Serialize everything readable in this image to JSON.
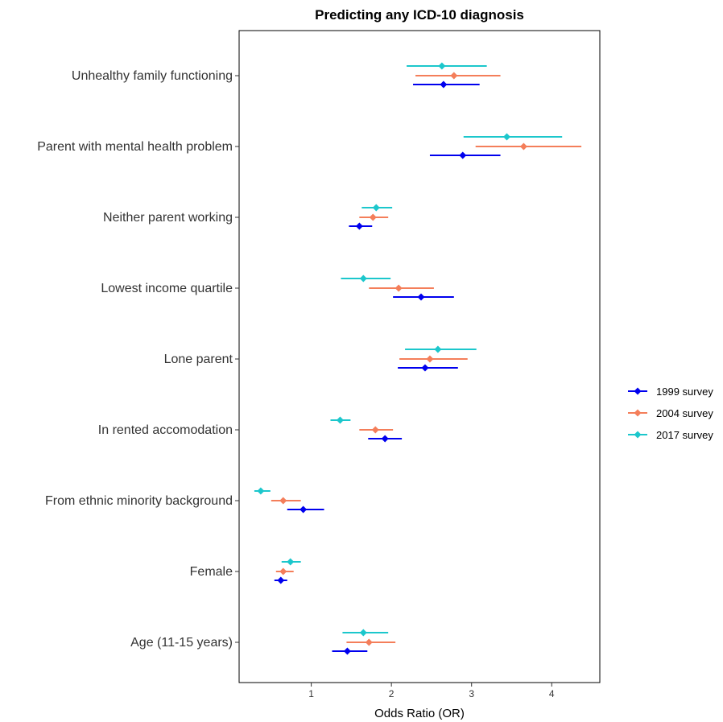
{
  "chart_data": {
    "type": "forest",
    "title": "Predicting any ICD-10 diagnosis",
    "xlabel": "Odds Ratio (OR)",
    "ylabel": "",
    "xlim": [
      0.1,
      4.6
    ],
    "xticks": [
      1,
      2,
      3,
      4
    ],
    "grid": false,
    "legend_position": "right",
    "categories": [
      "Unhealthy family functioning",
      "Parent with mental health problem",
      "Neither parent working",
      "Lowest income quartile",
      "Lone parent",
      "In rented accomodation",
      "From ethnic minority background",
      "Female",
      "Age (11-15 years)"
    ],
    "series": [
      {
        "name": "1999 survey",
        "color": "#0000EE",
        "points": [
          {
            "or": 2.65,
            "lo": 2.27,
            "hi": 3.1
          },
          {
            "or": 2.89,
            "lo": 2.48,
            "hi": 3.36
          },
          {
            "or": 1.6,
            "lo": 1.47,
            "hi": 1.76
          },
          {
            "or": 2.37,
            "lo": 2.02,
            "hi": 2.78
          },
          {
            "or": 2.42,
            "lo": 2.08,
            "hi": 2.83
          },
          {
            "or": 1.92,
            "lo": 1.71,
            "hi": 2.13
          },
          {
            "or": 0.9,
            "lo": 0.7,
            "hi": 1.16
          },
          {
            "or": 0.62,
            "lo": 0.54,
            "hi": 0.7
          },
          {
            "or": 1.45,
            "lo": 1.26,
            "hi": 1.7
          }
        ]
      },
      {
        "name": "2004 survey",
        "color": "#F47E5A",
        "points": [
          {
            "or": 2.78,
            "lo": 2.3,
            "hi": 3.36
          },
          {
            "or": 3.65,
            "lo": 3.05,
            "hi": 4.37
          },
          {
            "or": 1.77,
            "lo": 1.6,
            "hi": 1.96
          },
          {
            "or": 2.09,
            "lo": 1.72,
            "hi": 2.53
          },
          {
            "or": 2.48,
            "lo": 2.1,
            "hi": 2.95
          },
          {
            "or": 1.8,
            "lo": 1.6,
            "hi": 2.02
          },
          {
            "or": 0.65,
            "lo": 0.5,
            "hi": 0.87
          },
          {
            "or": 0.65,
            "lo": 0.56,
            "hi": 0.78
          },
          {
            "or": 1.72,
            "lo": 1.44,
            "hi": 2.05
          }
        ]
      },
      {
        "name": "2017 survey",
        "color": "#1CC7CC",
        "points": [
          {
            "or": 2.63,
            "lo": 2.19,
            "hi": 3.19
          },
          {
            "or": 3.44,
            "lo": 2.9,
            "hi": 4.13
          },
          {
            "or": 1.81,
            "lo": 1.63,
            "hi": 2.01
          },
          {
            "or": 1.65,
            "lo": 1.37,
            "hi": 1.99
          },
          {
            "or": 2.58,
            "lo": 2.17,
            "hi": 3.06
          },
          {
            "or": 1.36,
            "lo": 1.24,
            "hi": 1.49
          },
          {
            "or": 0.37,
            "lo": 0.29,
            "hi": 0.49
          },
          {
            "or": 0.74,
            "lo": 0.63,
            "hi": 0.87
          },
          {
            "or": 1.65,
            "lo": 1.39,
            "hi": 1.96
          }
        ]
      }
    ]
  }
}
